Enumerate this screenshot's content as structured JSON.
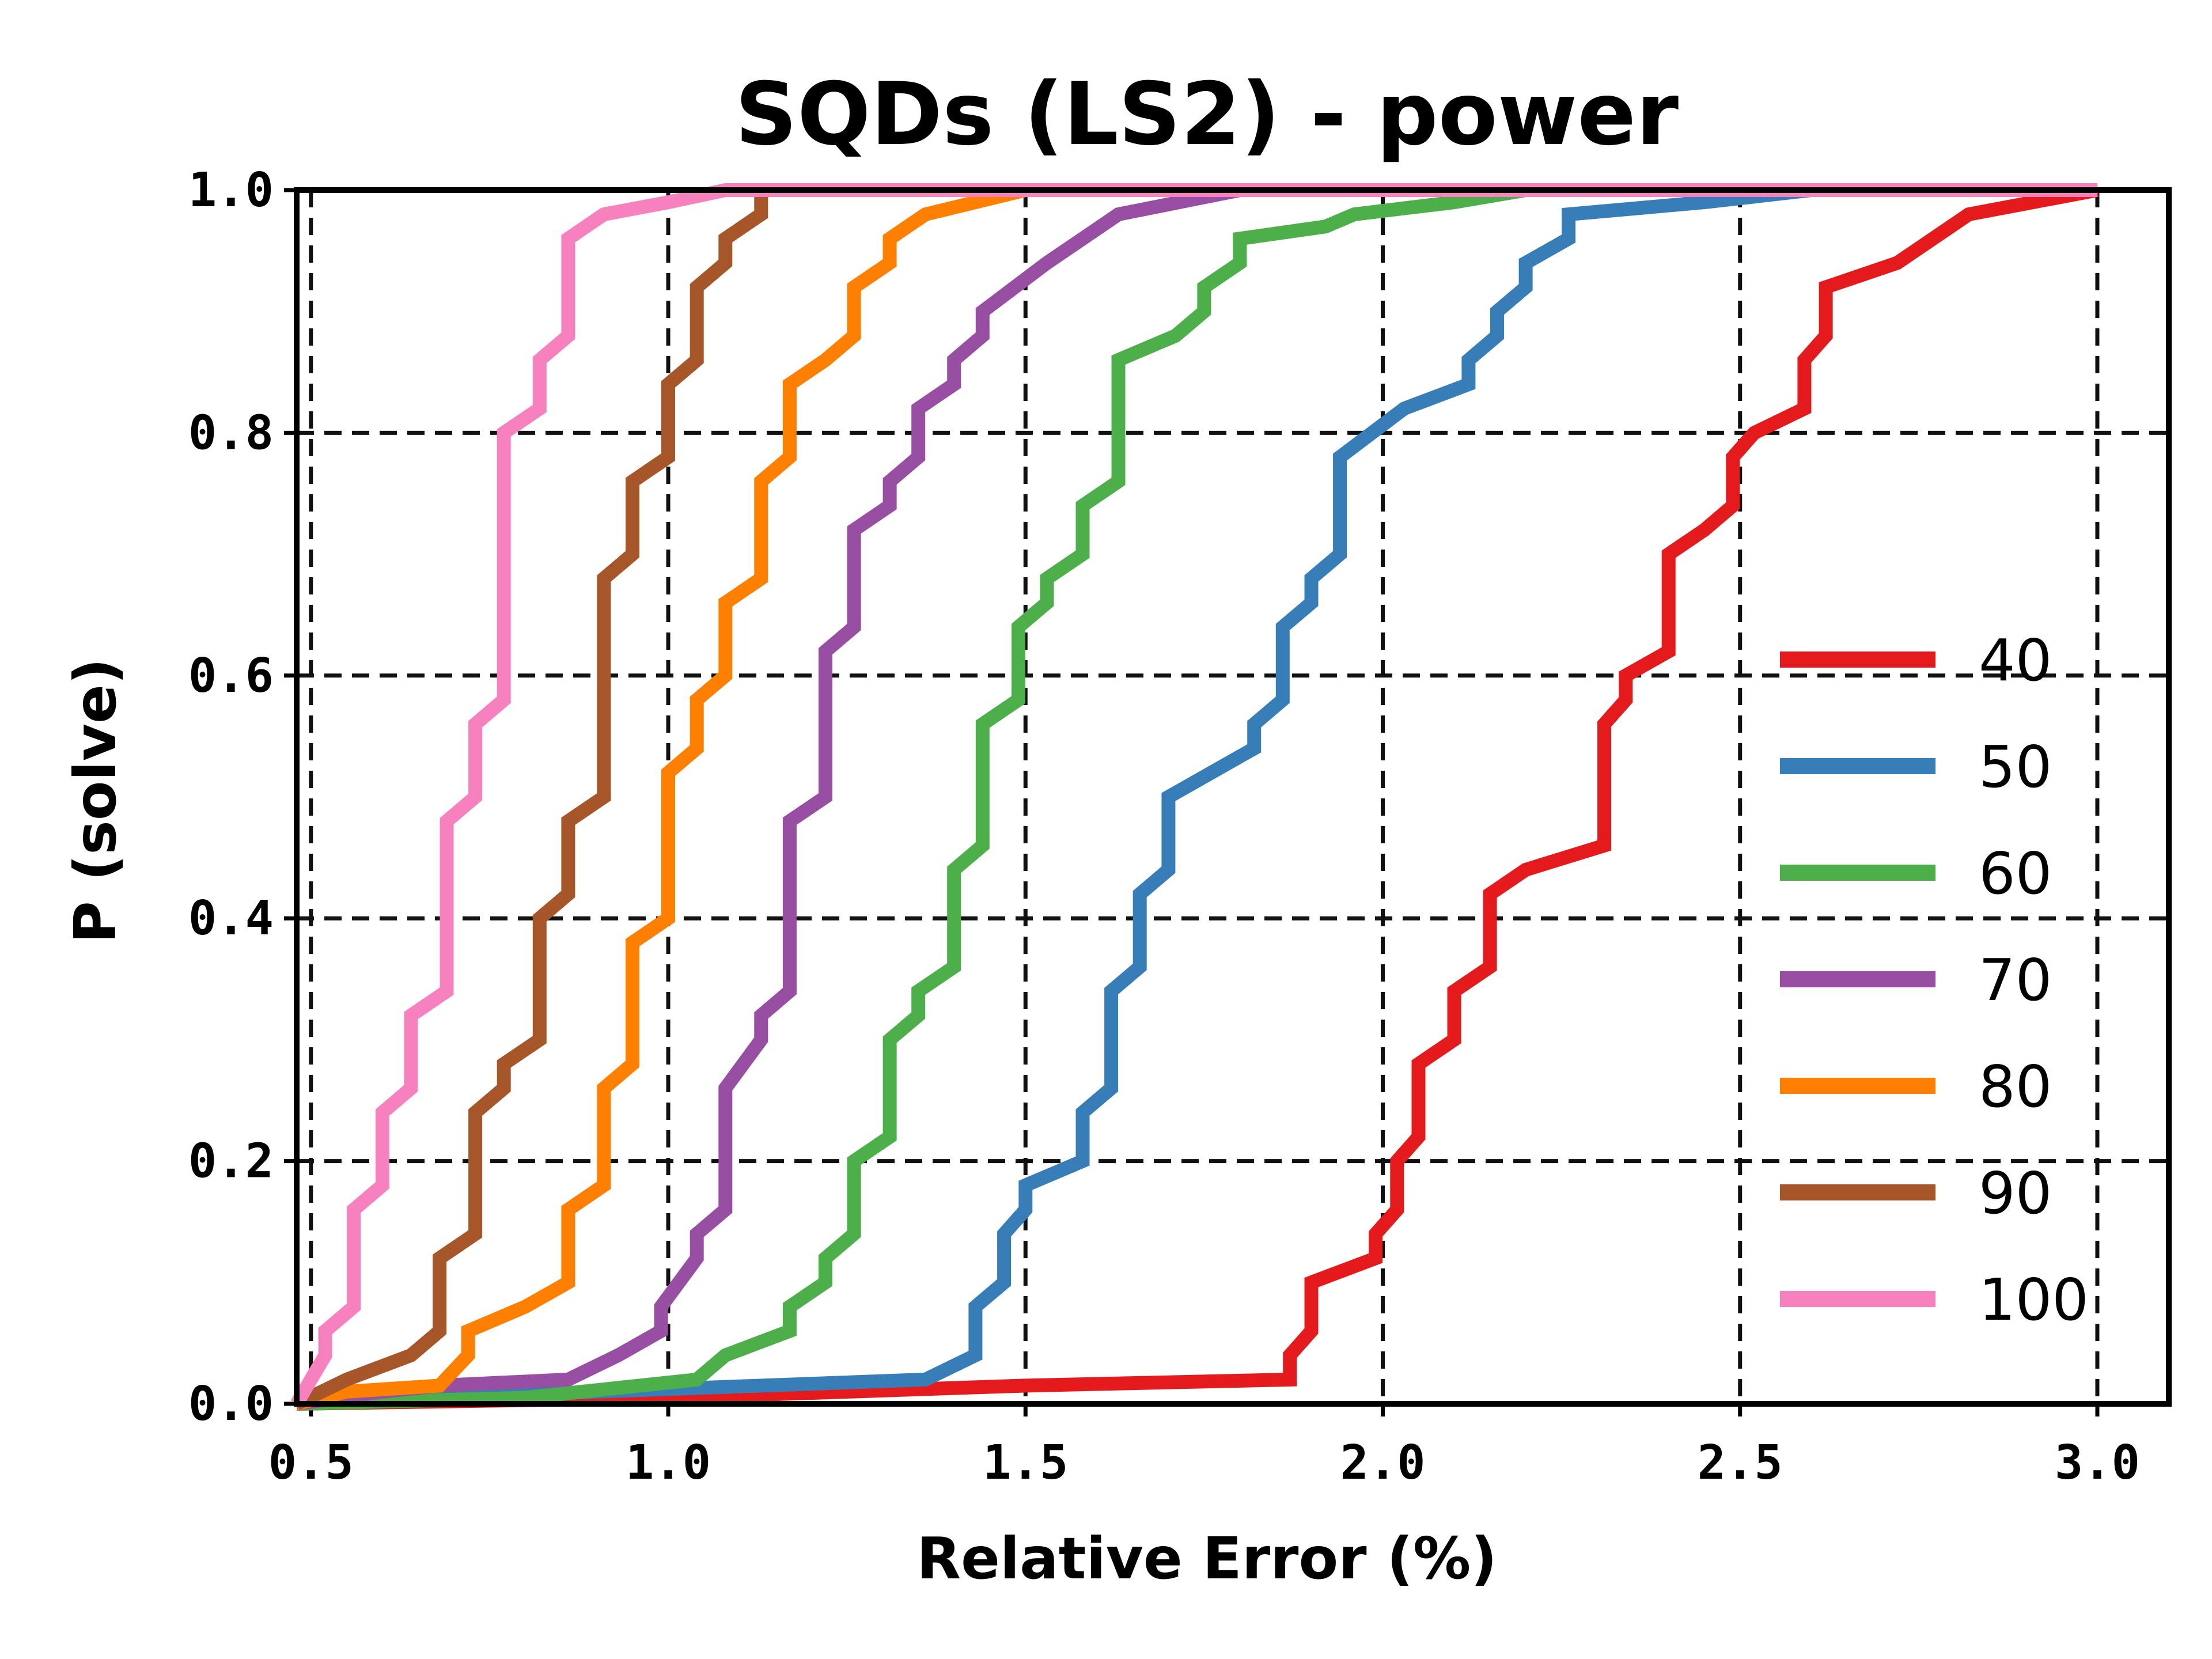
{
  "chart_data": {
    "type": "line",
    "title": "SQDs (LS2) - power",
    "xlabel": "Relative Error (%)",
    "ylabel": "P (solve)",
    "xlim": [
      0.48,
      3.1
    ],
    "ylim": [
      0.0,
      1.0
    ],
    "xticks": [
      "0.5",
      "1.0",
      "1.5",
      "2.0",
      "2.5",
      "3.0"
    ],
    "xtick_values": [
      0.5,
      1.0,
      1.5,
      2.0,
      2.5,
      3.0
    ],
    "yticks": [
      "0.0",
      "0.2",
      "0.4",
      "0.6",
      "0.8",
      "1.0"
    ],
    "ytick_values": [
      0.0,
      0.2,
      0.4,
      0.6,
      0.8,
      1.0
    ],
    "grid": true,
    "legend_position": "bottom-right",
    "series": [
      {
        "name": "40",
        "color": "#e41a1c",
        "points": [
          [
            0.48,
            0.0
          ],
          [
            1.0,
            0.005
          ],
          [
            1.5,
            0.015
          ],
          [
            1.87,
            0.02
          ],
          [
            1.87,
            0.04
          ],
          [
            1.9,
            0.06
          ],
          [
            1.9,
            0.1
          ],
          [
            1.99,
            0.12
          ],
          [
            1.99,
            0.14
          ],
          [
            2.02,
            0.16
          ],
          [
            2.02,
            0.2
          ],
          [
            2.05,
            0.22
          ],
          [
            2.05,
            0.28
          ],
          [
            2.1,
            0.3
          ],
          [
            2.1,
            0.34
          ],
          [
            2.15,
            0.36
          ],
          [
            2.15,
            0.42
          ],
          [
            2.2,
            0.44
          ],
          [
            2.31,
            0.46
          ],
          [
            2.31,
            0.56
          ],
          [
            2.34,
            0.58
          ],
          [
            2.34,
            0.6
          ],
          [
            2.4,
            0.62
          ],
          [
            2.4,
            0.7
          ],
          [
            2.45,
            0.72
          ],
          [
            2.49,
            0.74
          ],
          [
            2.49,
            0.78
          ],
          [
            2.52,
            0.8
          ],
          [
            2.59,
            0.82
          ],
          [
            2.59,
            0.86
          ],
          [
            2.62,
            0.88
          ],
          [
            2.62,
            0.92
          ],
          [
            2.72,
            0.94
          ],
          [
            2.77,
            0.96
          ],
          [
            2.82,
            0.98
          ],
          [
            3.0,
            1.0
          ]
        ]
      },
      {
        "name": "50",
        "color": "#377eb8",
        "points": [
          [
            0.48,
            0.0
          ],
          [
            0.9,
            0.01
          ],
          [
            1.36,
            0.02
          ],
          [
            1.43,
            0.04
          ],
          [
            1.43,
            0.08
          ],
          [
            1.47,
            0.1
          ],
          [
            1.47,
            0.14
          ],
          [
            1.5,
            0.16
          ],
          [
            1.5,
            0.18
          ],
          [
            1.58,
            0.2
          ],
          [
            1.58,
            0.24
          ],
          [
            1.62,
            0.26
          ],
          [
            1.62,
            0.34
          ],
          [
            1.66,
            0.36
          ],
          [
            1.66,
            0.42
          ],
          [
            1.7,
            0.44
          ],
          [
            1.7,
            0.5
          ],
          [
            1.82,
            0.54
          ],
          [
            1.82,
            0.56
          ],
          [
            1.86,
            0.58
          ],
          [
            1.86,
            0.64
          ],
          [
            1.9,
            0.66
          ],
          [
            1.9,
            0.68
          ],
          [
            1.94,
            0.7
          ],
          [
            1.94,
            0.78
          ],
          [
            2.03,
            0.82
          ],
          [
            2.12,
            0.84
          ],
          [
            2.12,
            0.86
          ],
          [
            2.16,
            0.88
          ],
          [
            2.16,
            0.9
          ],
          [
            2.2,
            0.92
          ],
          [
            2.2,
            0.94
          ],
          [
            2.26,
            0.96
          ],
          [
            2.26,
            0.98
          ],
          [
            2.45,
            0.99
          ],
          [
            2.6,
            1.0
          ],
          [
            3.0,
            1.0
          ]
        ]
      },
      {
        "name": "60",
        "color": "#4daf4a",
        "points": [
          [
            0.48,
            0.0
          ],
          [
            0.8,
            0.005
          ],
          [
            0.88,
            0.01
          ],
          [
            1.04,
            0.02
          ],
          [
            1.08,
            0.04
          ],
          [
            1.17,
            0.06
          ],
          [
            1.17,
            0.08
          ],
          [
            1.22,
            0.1
          ],
          [
            1.22,
            0.12
          ],
          [
            1.26,
            0.14
          ],
          [
            1.26,
            0.2
          ],
          [
            1.31,
            0.22
          ],
          [
            1.31,
            0.3
          ],
          [
            1.35,
            0.32
          ],
          [
            1.35,
            0.34
          ],
          [
            1.4,
            0.36
          ],
          [
            1.4,
            0.44
          ],
          [
            1.44,
            0.46
          ],
          [
            1.44,
            0.56
          ],
          [
            1.49,
            0.58
          ],
          [
            1.49,
            0.64
          ],
          [
            1.53,
            0.66
          ],
          [
            1.53,
            0.68
          ],
          [
            1.58,
            0.7
          ],
          [
            1.58,
            0.74
          ],
          [
            1.63,
            0.76
          ],
          [
            1.63,
            0.86
          ],
          [
            1.71,
            0.88
          ],
          [
            1.75,
            0.9
          ],
          [
            1.75,
            0.92
          ],
          [
            1.8,
            0.94
          ],
          [
            1.8,
            0.96
          ],
          [
            1.92,
            0.97
          ],
          [
            1.96,
            0.98
          ],
          [
            2.1,
            0.99
          ],
          [
            2.2,
            1.0
          ],
          [
            3.0,
            1.0
          ]
        ]
      },
      {
        "name": "70",
        "color": "#984ea3",
        "points": [
          [
            0.48,
            0.0
          ],
          [
            0.6,
            0.01
          ],
          [
            0.68,
            0.015
          ],
          [
            0.86,
            0.02
          ],
          [
            0.93,
            0.04
          ],
          [
            0.99,
            0.06
          ],
          [
            0.99,
            0.08
          ],
          [
            1.04,
            0.12
          ],
          [
            1.04,
            0.14
          ],
          [
            1.08,
            0.16
          ],
          [
            1.08,
            0.26
          ],
          [
            1.13,
            0.3
          ],
          [
            1.13,
            0.32
          ],
          [
            1.17,
            0.34
          ],
          [
            1.17,
            0.48
          ],
          [
            1.22,
            0.5
          ],
          [
            1.22,
            0.62
          ],
          [
            1.26,
            0.64
          ],
          [
            1.26,
            0.72
          ],
          [
            1.31,
            0.74
          ],
          [
            1.31,
            0.76
          ],
          [
            1.35,
            0.78
          ],
          [
            1.35,
            0.82
          ],
          [
            1.4,
            0.84
          ],
          [
            1.4,
            0.86
          ],
          [
            1.44,
            0.88
          ],
          [
            1.44,
            0.9
          ],
          [
            1.53,
            0.94
          ],
          [
            1.58,
            0.96
          ],
          [
            1.63,
            0.98
          ],
          [
            1.8,
            1.0
          ],
          [
            3.0,
            1.0
          ]
        ]
      },
      {
        "name": "80",
        "color": "#ff7f00",
        "points": [
          [
            0.48,
            0.0
          ],
          [
            0.55,
            0.01
          ],
          [
            0.68,
            0.015
          ],
          [
            0.72,
            0.04
          ],
          [
            0.72,
            0.06
          ],
          [
            0.8,
            0.08
          ],
          [
            0.86,
            0.1
          ],
          [
            0.86,
            0.16
          ],
          [
            0.91,
            0.18
          ],
          [
            0.91,
            0.26
          ],
          [
            0.95,
            0.28
          ],
          [
            0.95,
            0.38
          ],
          [
            1.0,
            0.4
          ],
          [
            1.0,
            0.52
          ],
          [
            1.04,
            0.54
          ],
          [
            1.04,
            0.58
          ],
          [
            1.08,
            0.6
          ],
          [
            1.08,
            0.66
          ],
          [
            1.13,
            0.68
          ],
          [
            1.13,
            0.76
          ],
          [
            1.17,
            0.78
          ],
          [
            1.17,
            0.84
          ],
          [
            1.22,
            0.86
          ],
          [
            1.26,
            0.88
          ],
          [
            1.26,
            0.92
          ],
          [
            1.31,
            0.94
          ],
          [
            1.31,
            0.96
          ],
          [
            1.36,
            0.98
          ],
          [
            1.5,
            1.0
          ],
          [
            3.0,
            1.0
          ]
        ]
      },
      {
        "name": "90",
        "color": "#a65628",
        "points": [
          [
            0.48,
            0.0
          ],
          [
            0.55,
            0.02
          ],
          [
            0.64,
            0.04
          ],
          [
            0.68,
            0.06
          ],
          [
            0.68,
            0.12
          ],
          [
            0.73,
            0.14
          ],
          [
            0.73,
            0.24
          ],
          [
            0.77,
            0.26
          ],
          [
            0.77,
            0.28
          ],
          [
            0.82,
            0.3
          ],
          [
            0.82,
            0.4
          ],
          [
            0.86,
            0.42
          ],
          [
            0.86,
            0.48
          ],
          [
            0.91,
            0.5
          ],
          [
            0.91,
            0.68
          ],
          [
            0.95,
            0.7
          ],
          [
            0.95,
            0.76
          ],
          [
            1.0,
            0.78
          ],
          [
            1.0,
            0.84
          ],
          [
            1.04,
            0.86
          ],
          [
            1.04,
            0.92
          ],
          [
            1.08,
            0.94
          ],
          [
            1.08,
            0.96
          ],
          [
            1.13,
            0.98
          ],
          [
            1.13,
            1.0
          ],
          [
            3.0,
            1.0
          ]
        ]
      },
      {
        "name": "100",
        "color": "#f781bf",
        "points": [
          [
            0.48,
            0.0
          ],
          [
            0.52,
            0.04
          ],
          [
            0.52,
            0.06
          ],
          [
            0.56,
            0.08
          ],
          [
            0.56,
            0.16
          ],
          [
            0.6,
            0.18
          ],
          [
            0.6,
            0.24
          ],
          [
            0.64,
            0.26
          ],
          [
            0.64,
            0.32
          ],
          [
            0.69,
            0.34
          ],
          [
            0.69,
            0.48
          ],
          [
            0.73,
            0.5
          ],
          [
            0.73,
            0.56
          ],
          [
            0.77,
            0.58
          ],
          [
            0.77,
            0.8
          ],
          [
            0.82,
            0.82
          ],
          [
            0.82,
            0.86
          ],
          [
            0.86,
            0.88
          ],
          [
            0.86,
            0.96
          ],
          [
            0.91,
            0.98
          ],
          [
            1.0,
            0.99
          ],
          [
            1.08,
            1.0
          ],
          [
            3.0,
            1.0
          ]
        ]
      }
    ]
  }
}
